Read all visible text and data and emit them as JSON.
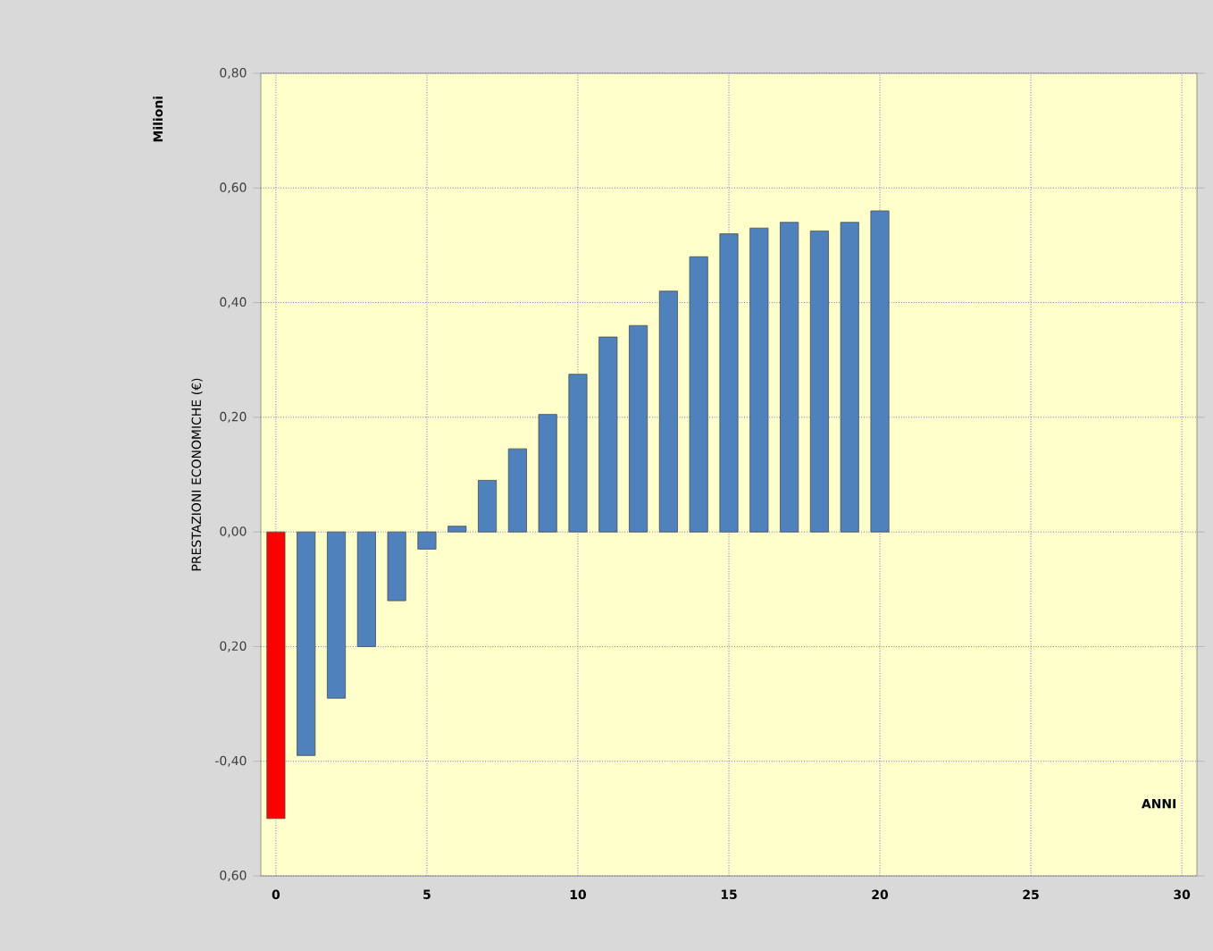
{
  "chart_data": {
    "type": "bar",
    "xlabel": "ANNI",
    "ylabel": "PRESTAZIONI ECONOMICHE (€)",
    "annotations": [
      "Milioni"
    ],
    "x": [
      0,
      1,
      2,
      3,
      4,
      5,
      6,
      7,
      8,
      9,
      10,
      11,
      12,
      13,
      14,
      15,
      16,
      17,
      18,
      19,
      20
    ],
    "values": [
      -0.5,
      -0.39,
      -0.29,
      -0.2,
      -0.12,
      -0.03,
      0.01,
      0.09,
      0.145,
      0.205,
      0.275,
      0.34,
      0.36,
      0.42,
      0.48,
      0.52,
      0.53,
      0.54,
      0.525,
      0.54,
      0.56
    ],
    "colors": [
      "#ff0000",
      "#4f81bd",
      "#4f81bd",
      "#4f81bd",
      "#4f81bd",
      "#4f81bd",
      "#4f81bd",
      "#4f81bd",
      "#4f81bd",
      "#4f81bd",
      "#4f81bd",
      "#4f81bd",
      "#4f81bd",
      "#4f81bd",
      "#4f81bd",
      "#4f81bd",
      "#4f81bd",
      "#4f81bd",
      "#4f81bd",
      "#4f81bd",
      "#4f81bd"
    ],
    "xlim": [
      -0.5,
      30.5
    ],
    "xticks": [
      0,
      5,
      10,
      15,
      20,
      25,
      30
    ],
    "ylim": [
      -0.6,
      0.8
    ],
    "yticks": [
      {
        "value": 0.8,
        "label": "0,80"
      },
      {
        "value": 0.6,
        "label": "0,60"
      },
      {
        "value": 0.4,
        "label": "0,40"
      },
      {
        "value": 0.2,
        "label": "0,20"
      },
      {
        "value": 0,
        "label": "0,00"
      },
      {
        "value": -0.2,
        "label": "0,20"
      },
      {
        "value": -0.4,
        "label": "-0,40"
      },
      {
        "value": -0.6,
        "label": "0,60"
      }
    ],
    "grid": true
  }
}
